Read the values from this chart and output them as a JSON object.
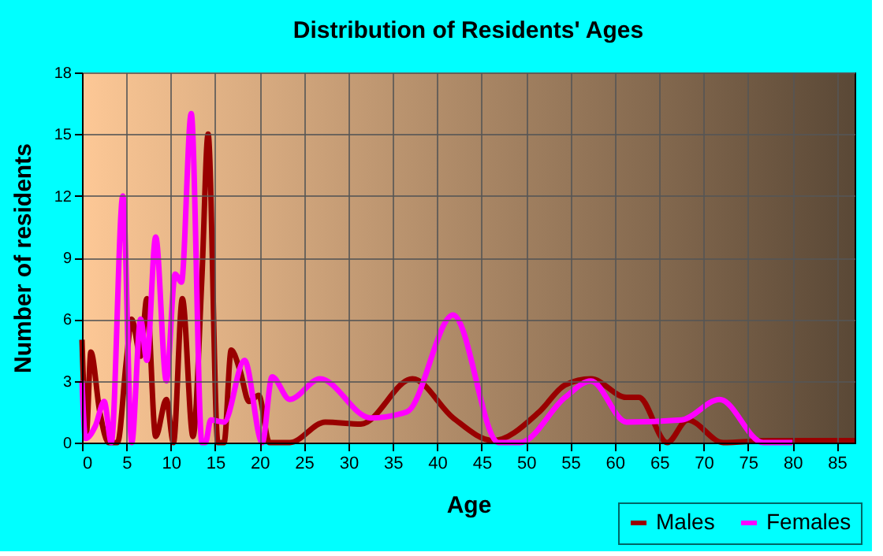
{
  "chart_data": {
    "type": "line",
    "title": "Distribution of Residents' Ages",
    "xlabel": "Age",
    "ylabel": "Number of residents",
    "xlim": [
      0,
      87
    ],
    "xticks": [
      0,
      5,
      10,
      15,
      20,
      25,
      30,
      35,
      40,
      45,
      50,
      55,
      60,
      65,
      70,
      75,
      80,
      85
    ],
    "ylim": [
      0,
      18
    ],
    "yticks": [
      0,
      3,
      6,
      9,
      12,
      15,
      18
    ],
    "grid": true,
    "legend": "bottom right",
    "series": [
      {
        "name": "Males",
        "color": "#990000",
        "x": [
          0,
          0.5,
          1,
          2,
          3,
          4,
          5,
          5.6,
          6.6,
          7.3,
          8.3,
          9.5,
          10.3,
          11.3,
          12.5,
          13.5,
          14.2,
          15.3,
          16,
          16.8,
          17.8,
          18.8,
          19.9,
          21.1,
          23.4,
          27.4,
          31.4,
          37.2,
          41.8,
          46.3,
          51.5,
          54.4,
          57.3,
          61.3,
          62.7,
          65.9,
          68.2,
          72.2,
          77.4,
          87
        ],
        "values": [
          5,
          0.5,
          4.4,
          1.5,
          0,
          0,
          4,
          6,
          4.2,
          7,
          0.3,
          2.1,
          0,
          7,
          0.3,
          8,
          15,
          0,
          0,
          4.5,
          3.5,
          2,
          2.3,
          0,
          0,
          1,
          0.9,
          3.1,
          1.2,
          0.1,
          1.5,
          2.8,
          3.1,
          2.2,
          2.2,
          0,
          1.1,
          0,
          0.1,
          0.1
        ]
      },
      {
        "name": "Females",
        "color": "#ff00ff",
        "x": [
          0,
          0.4,
          1.5,
          2.5,
          3.3,
          4.6,
          5.6,
          6.6,
          7.3,
          8.3,
          9.5,
          10.5,
          11.2,
          12.3,
          13.5,
          13.9,
          14.5,
          16,
          18.3,
          20.3,
          21.4,
          23.4,
          26.8,
          32.5,
          36.6,
          41.8,
          46.9,
          49.3,
          54.4,
          57.3,
          61.3,
          67.5,
          71.8,
          76.7,
          80
        ],
        "values": [
          3,
          0.2,
          0.8,
          2,
          0,
          12,
          0,
          6,
          4,
          10,
          3,
          8.2,
          7.8,
          16,
          0,
          0,
          1.1,
          1,
          4,
          0,
          3.2,
          2.1,
          3.1,
          1.2,
          1.5,
          6.2,
          0,
          0,
          2.2,
          3,
          1,
          1.1,
          2.1,
          0,
          0
        ]
      }
    ]
  }
}
